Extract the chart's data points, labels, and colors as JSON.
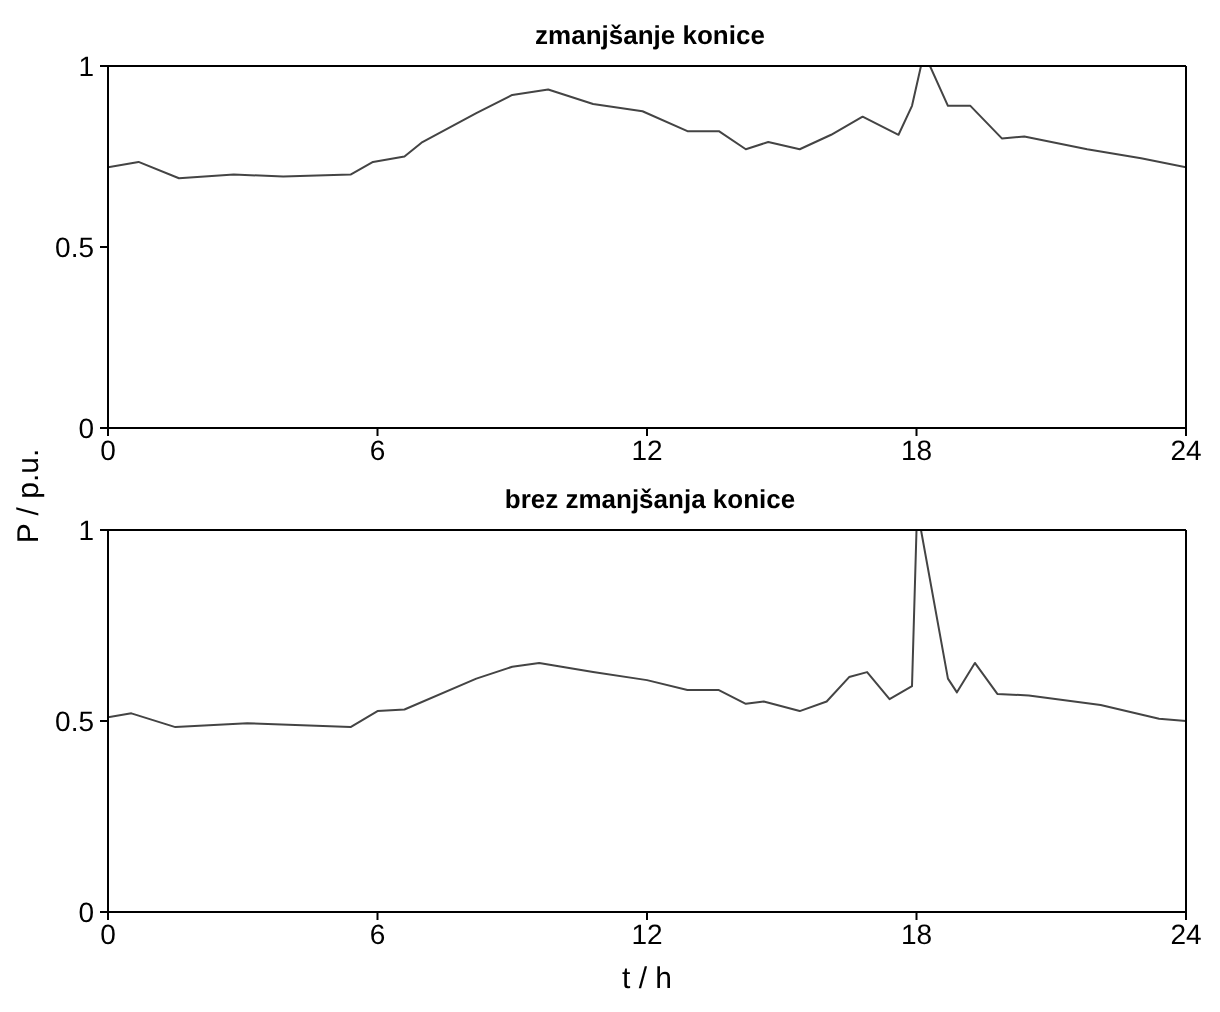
{
  "chart_data": [
    {
      "type": "line",
      "title": "zmanjšanje konice",
      "ylabel": "P / p.u.",
      "xlim": [
        0,
        24
      ],
      "xticks": [
        0,
        6,
        12,
        18,
        24
      ],
      "ylim": [
        0,
        1
      ],
      "yticks": [
        0,
        0.5,
        1
      ],
      "grid": false,
      "series": [
        {
          "color": "#444444",
          "x": [
            0,
            0.68,
            1.58,
            2.8,
            3.9,
            5.4,
            5.9,
            6.6,
            7.0,
            8.2,
            9.0,
            9.8,
            10.8,
            11.9,
            12.9,
            13.6,
            14.2,
            14.7,
            15.4,
            16.1,
            16.8,
            17.6,
            17.9,
            18.1,
            18.3,
            18.7,
            19.2,
            19.9,
            20.4,
            21.8,
            23.0,
            24
          ],
          "values": [
            0.72,
            0.735,
            0.69,
            0.7,
            0.695,
            0.7,
            0.735,
            0.75,
            0.79,
            0.87,
            0.92,
            0.935,
            0.895,
            0.875,
            0.82,
            0.82,
            0.77,
            0.79,
            0.77,
            0.81,
            0.86,
            0.81,
            0.89,
            1.0,
            1.0,
            0.89,
            0.89,
            0.8,
            0.805,
            0.77,
            0.745,
            0.72
          ]
        }
      ]
    },
    {
      "type": "line",
      "title": "brez zmanjšanja konice",
      "xlabel": "t / h",
      "xlim": [
        0,
        24
      ],
      "xticks": [
        0,
        6,
        12,
        18,
        24
      ],
      "ylim": [
        0,
        1
      ],
      "yticks": [
        0,
        0.5,
        1
      ],
      "grid": false,
      "series": [
        {
          "color": "#444444",
          "x": [
            0,
            0.52,
            1.5,
            3.1,
            5.4,
            6.0,
            6.6,
            8.2,
            9.0,
            9.6,
            10.8,
            12.0,
            12.9,
            13.6,
            14.2,
            14.6,
            15.4,
            16.0,
            16.5,
            16.9,
            17.4,
            17.9,
            18.0,
            18.1,
            18.7,
            18.9,
            19.3,
            19.8,
            20.5,
            22.1,
            23.4,
            24
          ],
          "values": [
            0.51,
            0.52,
            0.484,
            0.494,
            0.484,
            0.526,
            0.53,
            0.611,
            0.642,
            0.652,
            0.628,
            0.607,
            0.581,
            0.581,
            0.545,
            0.551,
            0.526,
            0.551,
            0.615,
            0.628,
            0.557,
            0.591,
            1.0,
            1.0,
            0.611,
            0.575,
            0.652,
            0.571,
            0.567,
            0.542,
            0.506,
            0.5
          ]
        }
      ]
    }
  ]
}
